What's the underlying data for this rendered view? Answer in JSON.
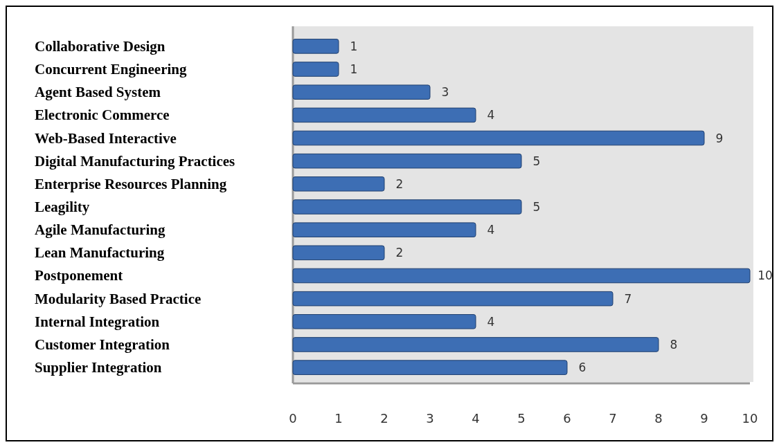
{
  "chart_data": {
    "type": "bar",
    "orientation": "horizontal",
    "categories": [
      "Collaborative Design",
      "Concurrent Engineering",
      "Agent Based System",
      "Electronic Commerce",
      "Web-Based Interactive",
      "Digital Manufacturing Practices",
      "Enterprise Resources Planning",
      "Leagility",
      "Agile Manufacturing",
      "Lean Manufacturing",
      "Postponement",
      "Modularity Based Practice",
      "Internal Integration",
      "Customer Integration",
      "Supplier Integration"
    ],
    "values": [
      1,
      1,
      3,
      4,
      9,
      5,
      2,
      5,
      4,
      2,
      10,
      7,
      4,
      8,
      6
    ],
    "color": "#3d6eb4",
    "xlim": [
      0,
      10
    ],
    "xticks": [
      0,
      1,
      2,
      3,
      4,
      5,
      6,
      7,
      8,
      9,
      10
    ],
    "data_labels": true,
    "grid": false
  }
}
